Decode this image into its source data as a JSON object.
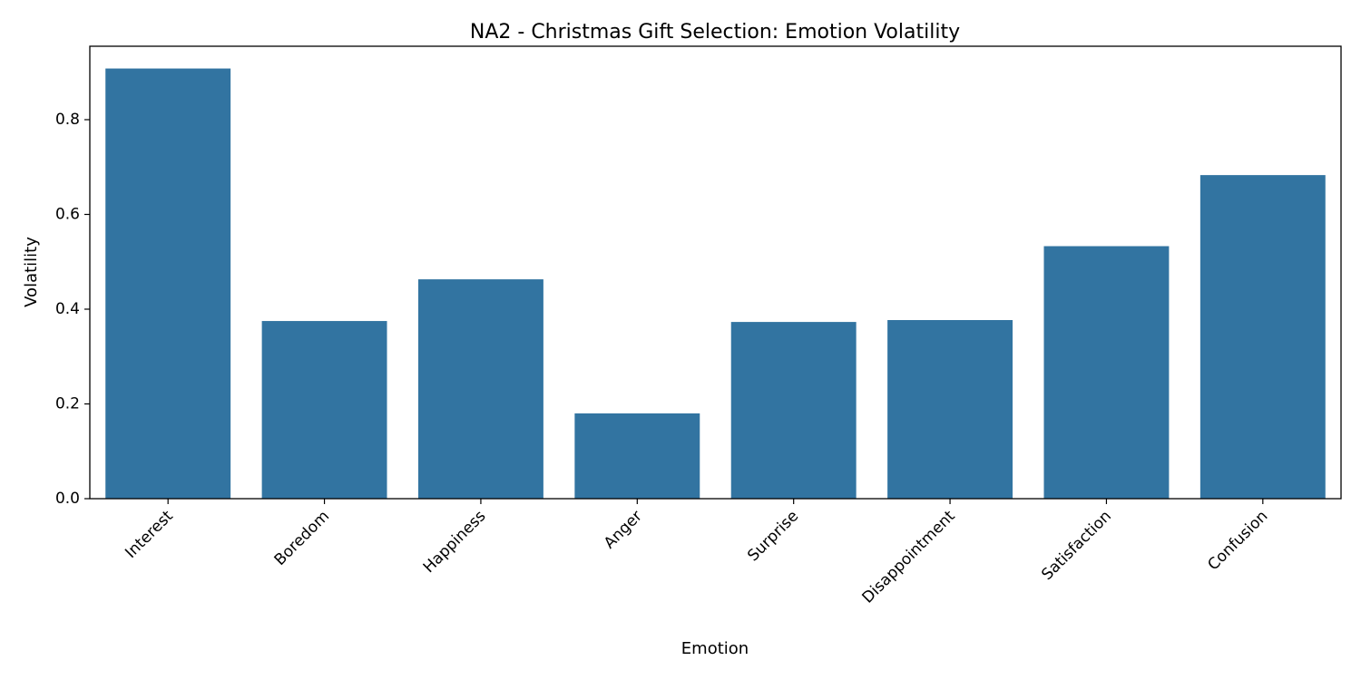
{
  "chart_data": {
    "type": "bar",
    "title": "NA2 - Christmas Gift Selection: Emotion Volatility",
    "xlabel": "Emotion",
    "ylabel": "Volatility",
    "categories": [
      "Interest",
      "Boredom",
      "Happiness",
      "Anger",
      "Surprise",
      "Disappointment",
      "Satisfaction",
      "Confusion"
    ],
    "values": [
      0.908,
      0.375,
      0.463,
      0.18,
      0.373,
      0.377,
      0.533,
      0.683
    ],
    "ylim": [
      0,
      0.955
    ],
    "yticks": [
      0.0,
      0.2,
      0.4,
      0.6,
      0.8
    ],
    "ytick_labels": [
      "0.0",
      "0.2",
      "0.4",
      "0.6",
      "0.8"
    ],
    "bar_color": "#3274a1",
    "grid": false,
    "legend": "none"
  }
}
